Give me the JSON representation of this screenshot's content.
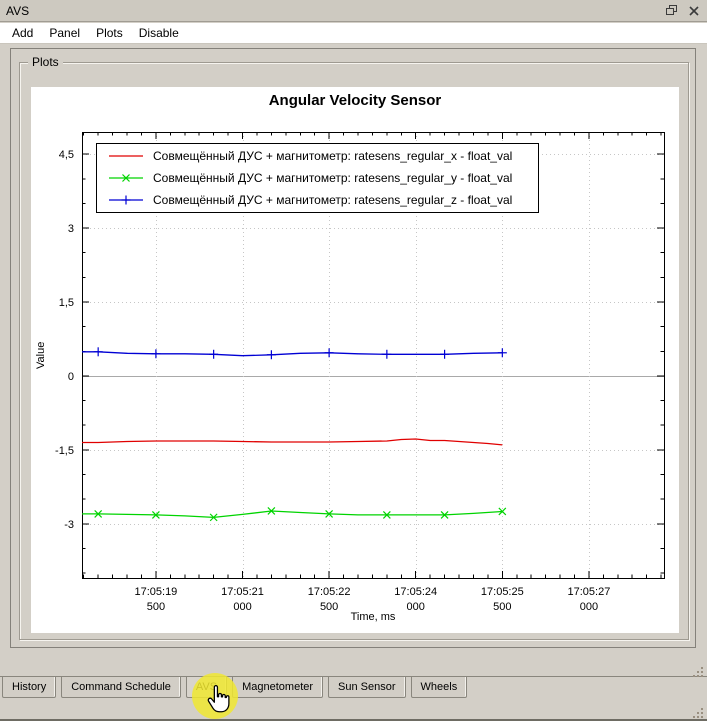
{
  "window": {
    "title": "AVS"
  },
  "menu": {
    "items": [
      "Add",
      "Panel",
      "Plots",
      "Disable"
    ]
  },
  "plots_panel": {
    "group_label": "Plots"
  },
  "chart_data": {
    "type": "line",
    "title": "Angular Velocity Sensor",
    "xlabel": "Time, ms",
    "ylabel": "Value",
    "x_encoding": "seconds after 17:05:00",
    "xlim": [
      18.22,
      28.3
    ],
    "ylim": [
      -4.1,
      4.95
    ],
    "grid": "dotted at major ticks, solid line at zero",
    "legend_position": "top-left",
    "yticks": [
      {
        "v": 4.5,
        "label": "4,5"
      },
      {
        "v": 3,
        "label": "3"
      },
      {
        "v": 1.5,
        "label": "1,5"
      },
      {
        "v": 0,
        "label": "0"
      },
      {
        "v": -1.5,
        "label": "-1,5"
      },
      {
        "v": -3,
        "label": "-3"
      }
    ],
    "xticks": [
      {
        "v": 19.5,
        "label": "17:05:19",
        "label2": "500"
      },
      {
        "v": 21.0,
        "label": "17:05:21",
        "label2": "000"
      },
      {
        "v": 22.5,
        "label": "17:05:22",
        "label2": "500"
      },
      {
        "v": 24.0,
        "label": "17:05:24",
        "label2": "000"
      },
      {
        "v": 25.5,
        "label": "17:05:25",
        "label2": "500"
      },
      {
        "v": 27.0,
        "label": "17:05:27",
        "label2": "000"
      }
    ],
    "series": [
      {
        "name": "Совмещённый ДУС + магнитометр: ratesens_regular_x - float_val",
        "color": "#e00000",
        "marker": "none",
        "marker_t": [],
        "points": [
          [
            18.22,
            -1.35
          ],
          [
            18.5,
            -1.35
          ],
          [
            19,
            -1.33
          ],
          [
            19.5,
            -1.32
          ],
          [
            20,
            -1.32
          ],
          [
            20.5,
            -1.32
          ],
          [
            21,
            -1.33
          ],
          [
            21.5,
            -1.34
          ],
          [
            22,
            -1.34
          ],
          [
            22.5,
            -1.34
          ],
          [
            23,
            -1.33
          ],
          [
            23.5,
            -1.32
          ],
          [
            23.75,
            -1.29
          ],
          [
            24,
            -1.28
          ],
          [
            24.25,
            -1.31
          ],
          [
            24.5,
            -1.31
          ],
          [
            25,
            -1.35
          ],
          [
            25.25,
            -1.37
          ],
          [
            25.5,
            -1.4
          ]
        ]
      },
      {
        "name": "Совмещённый ДУС + магнитометр: ratesens_regular_y - float_val",
        "color": "#00d400",
        "marker": "x",
        "marker_t": [
          18.5,
          19.5,
          20.5,
          21.5,
          22.5,
          23.5,
          24.5,
          25.5
        ],
        "points": [
          [
            18.22,
            -2.8
          ],
          [
            18.5,
            -2.8
          ],
          [
            19,
            -2.81
          ],
          [
            19.5,
            -2.82
          ],
          [
            20,
            -2.84
          ],
          [
            20.5,
            -2.87
          ],
          [
            21,
            -2.81
          ],
          [
            21.5,
            -2.74
          ],
          [
            22,
            -2.77
          ],
          [
            22.5,
            -2.8
          ],
          [
            23,
            -2.82
          ],
          [
            23.5,
            -2.82
          ],
          [
            24,
            -2.82
          ],
          [
            24.5,
            -2.82
          ],
          [
            25,
            -2.79
          ],
          [
            25.5,
            -2.75
          ]
        ]
      },
      {
        "name": "Совмещённый ДУС + магнитометр: ratesens_regular_z - float_val",
        "color": "#0000d4",
        "marker": "+",
        "marker_t": [
          18.5,
          19.5,
          20.5,
          21.5,
          22.5,
          23.5,
          24.5,
          25.5
        ],
        "points": [
          [
            18.22,
            0.49
          ],
          [
            18.5,
            0.49
          ],
          [
            19,
            0.46
          ],
          [
            19.5,
            0.45
          ],
          [
            20,
            0.45
          ],
          [
            20.5,
            0.44
          ],
          [
            21,
            0.41
          ],
          [
            21.5,
            0.43
          ],
          [
            22,
            0.46
          ],
          [
            22.5,
            0.47
          ],
          [
            23,
            0.45
          ],
          [
            23.5,
            0.44
          ],
          [
            24,
            0.44
          ],
          [
            24.5,
            0.44
          ],
          [
            25,
            0.46
          ],
          [
            25.5,
            0.47
          ]
        ]
      }
    ]
  },
  "tabs": {
    "items": [
      {
        "label": "History",
        "active": false
      },
      {
        "label": "Command Schedule",
        "active": false
      },
      {
        "label": "AVS",
        "active": true
      },
      {
        "label": "Magnetometer",
        "active": false
      },
      {
        "label": "Sun Sensor",
        "active": false
      },
      {
        "label": "Wheels",
        "active": false
      }
    ]
  },
  "cursor": {
    "type": "hand-pointer",
    "highlight_color": "#f0e830",
    "target_tab": "AVS"
  },
  "colors": {
    "window_bg": "#d3cfc7",
    "titlebar_bg": "#cdc9c0",
    "menubar_bg": "#ffffff",
    "chart_bg": "#ffffff",
    "grid_dotted": "#c6c6c6",
    "zero_line": "#a9a9a9"
  }
}
